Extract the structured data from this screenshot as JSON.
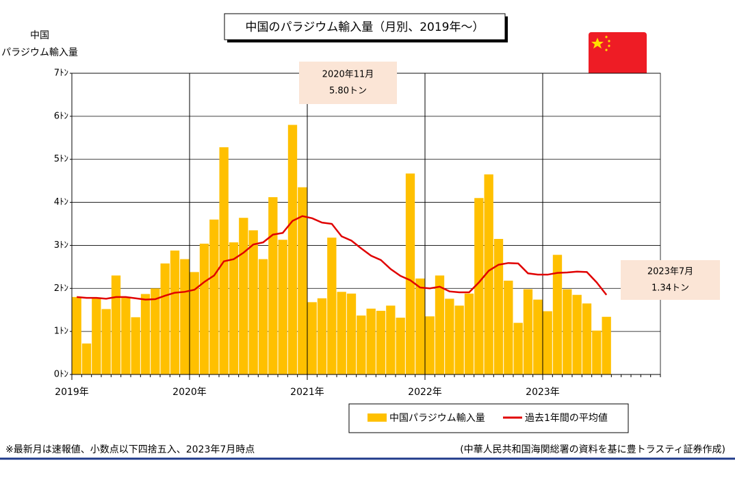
{
  "chart_data": {
    "type": "bar",
    "title": "中国のパラジウム輸入量（月別、2019年～）",
    "ylabel": [
      "中国",
      "パラジウム輸入量"
    ],
    "categories": [
      "2019年",
      null,
      null,
      null,
      null,
      null,
      null,
      null,
      null,
      null,
      null,
      null,
      "2020年",
      null,
      null,
      null,
      null,
      null,
      null,
      null,
      null,
      null,
      null,
      null,
      "2021年",
      null,
      null,
      null,
      null,
      null,
      null,
      null,
      null,
      null,
      null,
      null,
      "2022年",
      null,
      null,
      null,
      null,
      null,
      null,
      null,
      null,
      null,
      null,
      null,
      "2023年",
      null,
      null,
      null,
      null,
      null,
      null,
      null,
      null,
      null,
      null,
      null
    ],
    "series": [
      {
        "name": "中国パラジウム輸入量",
        "type": "bar",
        "color": "#ffc000",
        "values": [
          1.8,
          0.72,
          1.77,
          1.52,
          2.3,
          1.8,
          1.33,
          1.87,
          2.0,
          2.58,
          2.88,
          2.68,
          2.38,
          3.04,
          3.6,
          5.28,
          3.07,
          3.64,
          3.35,
          2.68,
          4.12,
          3.13,
          5.8,
          4.35,
          1.68,
          1.77,
          3.18,
          1.92,
          1.88,
          1.37,
          1.53,
          1.48,
          1.6,
          1.32,
          4.67,
          2.23,
          1.35,
          2.3,
          1.76,
          1.6,
          1.88,
          4.1,
          4.65,
          3.15,
          2.18,
          1.2,
          1.98,
          1.74,
          1.47,
          2.78,
          1.98,
          1.85,
          1.65,
          1.02,
          1.34,
          null,
          null,
          null,
          null,
          null
        ]
      },
      {
        "name": "過去1年間の平均値",
        "type": "line",
        "color": "#e00000",
        "values": [
          1.8,
          1.78,
          1.78,
          1.76,
          1.8,
          1.8,
          1.77,
          1.74,
          1.75,
          1.83,
          1.9,
          1.92,
          1.97,
          2.15,
          2.3,
          2.63,
          2.68,
          2.83,
          3.02,
          3.07,
          3.25,
          3.29,
          3.57,
          3.68,
          3.63,
          3.53,
          3.5,
          3.21,
          3.11,
          2.93,
          2.76,
          2.66,
          2.45,
          2.29,
          2.19,
          2.02,
          2.0,
          2.04,
          1.93,
          1.91,
          1.91,
          2.14,
          2.41,
          2.55,
          2.59,
          2.58,
          2.35,
          2.32,
          2.32,
          2.36,
          2.37,
          2.39,
          2.38,
          2.14,
          1.85,
          null,
          null,
          null,
          null,
          null
        ]
      }
    ],
    "ylim": [
      0,
      7
    ],
    "yticks": [
      {
        "value": 0,
        "label": "0ﾄﾝ"
      },
      {
        "value": 1,
        "label": "1ﾄﾝ"
      },
      {
        "value": 2,
        "label": "2ﾄﾝ"
      },
      {
        "value": 3,
        "label": "3ﾄﾝ"
      },
      {
        "value": 4,
        "label": "4ﾄﾝ"
      },
      {
        "value": 5,
        "label": "5ﾄﾝ"
      },
      {
        "value": 6,
        "label": "6ﾄﾝ"
      },
      {
        "value": 7,
        "label": "7ﾄﾝ"
      }
    ],
    "grid": true,
    "annotations": [
      {
        "text": [
          "2020年11月",
          "5.80トン"
        ]
      },
      {
        "text": [
          "2023年7月",
          "1.34トン"
        ]
      }
    ]
  },
  "footnote": "※最新月は速報値、小数点以下四捨五入、2023年7月時点",
  "source": "(中華人民共和国海関総署の資料を基に豊トラスティ証券作成)"
}
